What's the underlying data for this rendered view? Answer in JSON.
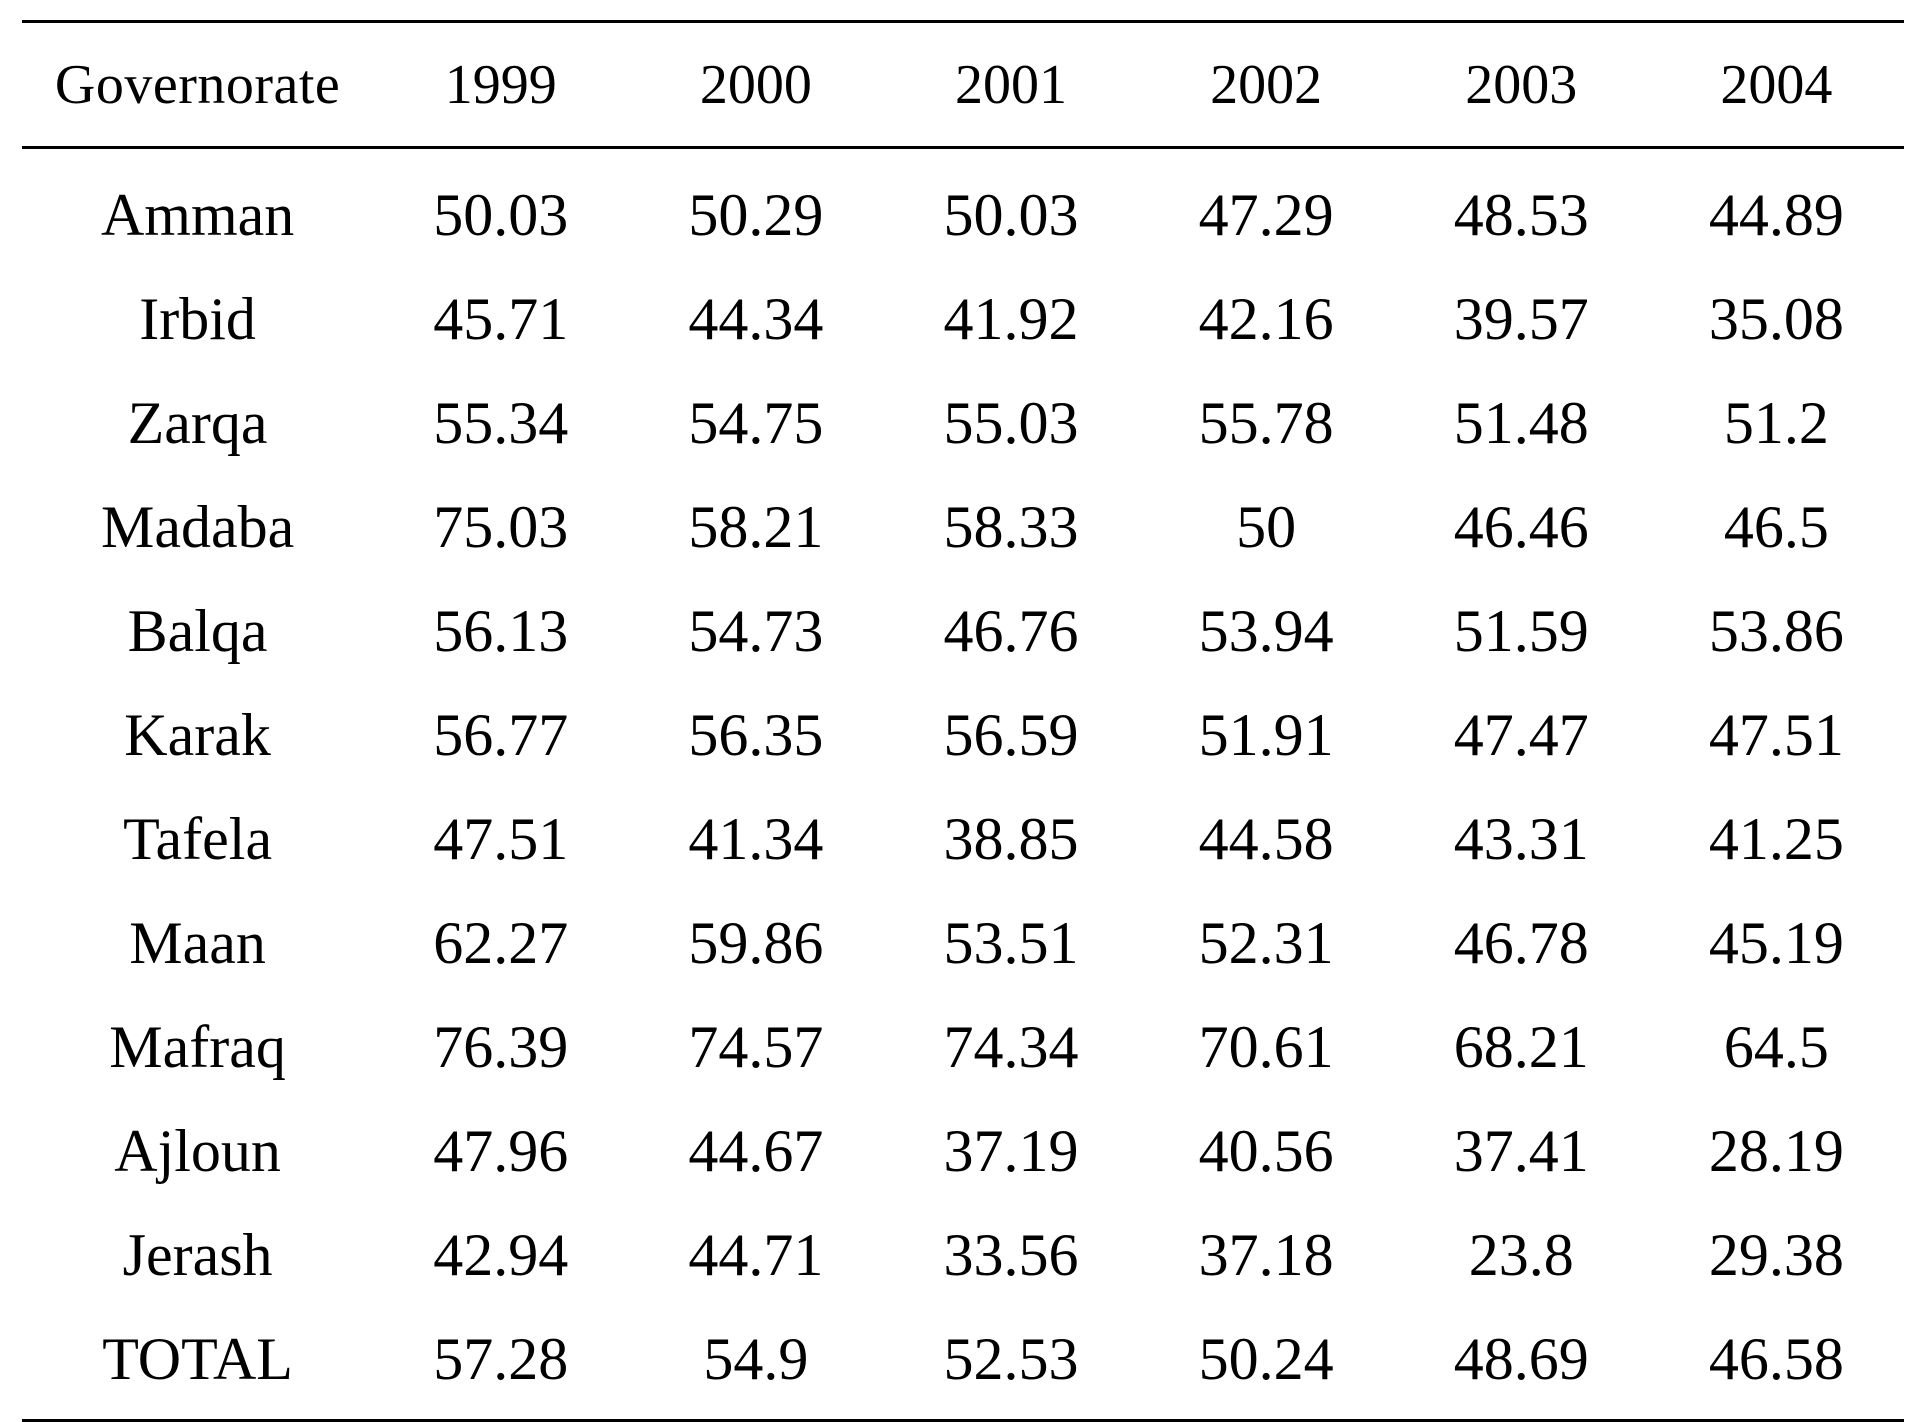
{
  "table": {
    "columns": [
      "Governorate",
      "1999",
      "2000",
      "2001",
      "2002",
      "2003",
      "2004"
    ],
    "rows": [
      [
        "Amman",
        "50.03",
        "50.29",
        "50.03",
        "47.29",
        "48.53",
        "44.89"
      ],
      [
        "Irbid",
        "45.71",
        "44.34",
        "41.92",
        "42.16",
        "39.57",
        "35.08"
      ],
      [
        "Zarqa",
        "55.34",
        "54.75",
        "55.03",
        "55.78",
        "51.48",
        "51.2"
      ],
      [
        "Madaba",
        "75.03",
        "58.21",
        "58.33",
        "50",
        "46.46",
        "46.5"
      ],
      [
        "Balqa",
        "56.13",
        "54.73",
        "46.76",
        "53.94",
        "51.59",
        "53.86"
      ],
      [
        "Karak",
        "56.77",
        "56.35",
        "56.59",
        "51.91",
        "47.47",
        "47.51"
      ],
      [
        "Tafela",
        "47.51",
        "41.34",
        "38.85",
        "44.58",
        "43.31",
        "41.25"
      ],
      [
        "Maan",
        "62.27",
        "59.86",
        "53.51",
        "52.31",
        "46.78",
        "45.19"
      ],
      [
        "Mafraq",
        "76.39",
        "74.57",
        "74.34",
        "70.61",
        "68.21",
        "64.5"
      ],
      [
        "Ajloun",
        "47.96",
        "44.67",
        "37.19",
        "40.56",
        "37.41",
        "28.19"
      ],
      [
        "Jerash",
        "42.94",
        "44.71",
        "33.56",
        "37.18",
        "23.8",
        "29.38"
      ],
      [
        "TOTAL",
        "57.28",
        "54.9",
        "52.53",
        "50.24",
        "48.69",
        "46.58"
      ]
    ]
  }
}
